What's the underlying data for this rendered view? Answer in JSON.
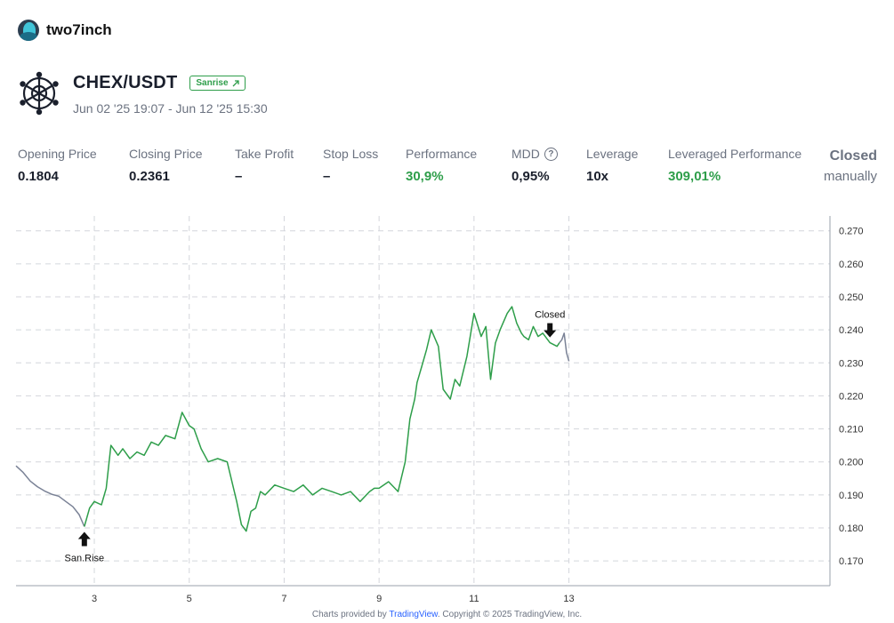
{
  "brand": {
    "name": "two7inch"
  },
  "header": {
    "pair": "CHEX/USDT",
    "tag": "Sanrise",
    "tag_icon": "external-arrow-icon",
    "date_range": "Jun 02 '25 19:07 - Jun 12 '25 15:30"
  },
  "stats": [
    {
      "label": "Opening Price",
      "value": "0.1804",
      "color": "#1a1f2c"
    },
    {
      "label": "Closing Price",
      "value": "0.2361",
      "color": "#1a1f2c"
    },
    {
      "label": "Take Profit",
      "value": "–",
      "color": "#1a1f2c"
    },
    {
      "label": "Stop Loss",
      "value": "–",
      "color": "#1a1f2c"
    },
    {
      "label": "Performance",
      "value": "30,9%",
      "color": "#2e9e4a"
    },
    {
      "label": "MDD",
      "value": "0,95%",
      "color": "#1a1f2c",
      "help_icon": "?"
    },
    {
      "label": "Leverage",
      "value": "10x",
      "color": "#1a1f2c"
    },
    {
      "label": "Leveraged Performance",
      "value": "309,01%",
      "color": "#2e9e4a"
    }
  ],
  "status": {
    "title": "Closed",
    "subtitle": "manually"
  },
  "colors": {
    "profit": "#2e9e4a",
    "neutral_line": "#7a8296",
    "grid": "#d4d6dc"
  },
  "chart_data": {
    "type": "line",
    "x_ticks": [
      "3",
      "5",
      "7",
      "9",
      "11",
      "13"
    ],
    "y_ticks": [
      "0.270",
      "0.260",
      "0.250",
      "0.240",
      "0.230",
      "0.220",
      "0.210",
      "0.200",
      "0.190",
      "0.180",
      "0.170"
    ],
    "ylim": [
      0.1625,
      0.2745
    ],
    "xlim": [
      1.35,
      18.5
    ],
    "grid": true,
    "series": [
      {
        "role": "before-entry",
        "x": [
          1.35,
          1.5,
          1.65,
          1.8,
          1.95,
          2.1,
          2.25,
          2.4,
          2.55,
          2.68,
          2.79
        ],
        "y": [
          0.1988,
          0.1968,
          0.1942,
          0.1925,
          0.1912,
          0.1902,
          0.1896,
          0.188,
          0.1864,
          0.184,
          0.1804
        ]
      },
      {
        "role": "trade",
        "x": [
          2.79,
          2.9,
          3.0,
          3.15,
          3.25,
          3.35,
          3.5,
          3.6,
          3.75,
          3.9,
          4.05,
          4.2,
          4.35,
          4.5,
          4.7,
          4.85,
          5.0,
          5.1,
          5.25,
          5.4,
          5.6,
          5.8,
          6.0,
          6.1,
          6.2,
          6.3,
          6.4,
          6.5,
          6.6,
          6.8,
          7.0,
          7.2,
          7.4,
          7.6,
          7.8,
          8.0,
          8.2,
          8.4,
          8.6,
          8.8,
          8.9,
          9.0,
          9.2,
          9.4,
          9.55,
          9.65,
          9.75,
          9.8,
          9.9,
          10.0,
          10.1,
          10.25,
          10.35,
          10.5,
          10.6,
          10.7,
          10.85,
          11.0,
          11.15,
          11.25,
          11.35,
          11.45,
          11.55,
          11.7,
          11.8,
          11.9,
          12.0,
          12.05,
          12.15,
          12.25,
          12.35,
          12.45,
          12.6,
          12.75,
          12.8
        ],
        "y": [
          0.1804,
          0.186,
          0.188,
          0.187,
          0.192,
          0.205,
          0.202,
          0.204,
          0.201,
          0.203,
          0.202,
          0.206,
          0.205,
          0.208,
          0.207,
          0.215,
          0.211,
          0.21,
          0.204,
          0.2,
          0.201,
          0.2,
          0.188,
          0.181,
          0.179,
          0.185,
          0.186,
          0.191,
          0.19,
          0.193,
          0.192,
          0.191,
          0.193,
          0.19,
          0.192,
          0.191,
          0.19,
          0.191,
          0.188,
          0.191,
          0.192,
          0.192,
          0.194,
          0.191,
          0.2,
          0.213,
          0.219,
          0.224,
          0.229,
          0.234,
          0.24,
          0.235,
          0.222,
          0.219,
          0.225,
          0.223,
          0.232,
          0.245,
          0.238,
          0.241,
          0.225,
          0.236,
          0.24,
          0.245,
          0.247,
          0.242,
          0.239,
          0.238,
          0.237,
          0.241,
          0.238,
          0.239,
          0.2361,
          0.235,
          0.2361
        ]
      },
      {
        "role": "after-close",
        "x": [
          12.8,
          12.85,
          12.9,
          12.95,
          13.0
        ],
        "y": [
          0.2361,
          0.237,
          0.239,
          0.233,
          0.2305
        ]
      }
    ],
    "annotations": [
      {
        "label": "San.Rise",
        "x": 2.79,
        "y": 0.1804,
        "arrow": "up-arrow-icon"
      },
      {
        "label": "Closed",
        "x": 12.6,
        "y": 0.2361,
        "arrow": "down-arrow-icon"
      }
    ]
  },
  "footer": {
    "prefix": "Charts provided by ",
    "link": "TradingView",
    "suffix": ". Copyright © 2025 TradingView, Inc."
  }
}
